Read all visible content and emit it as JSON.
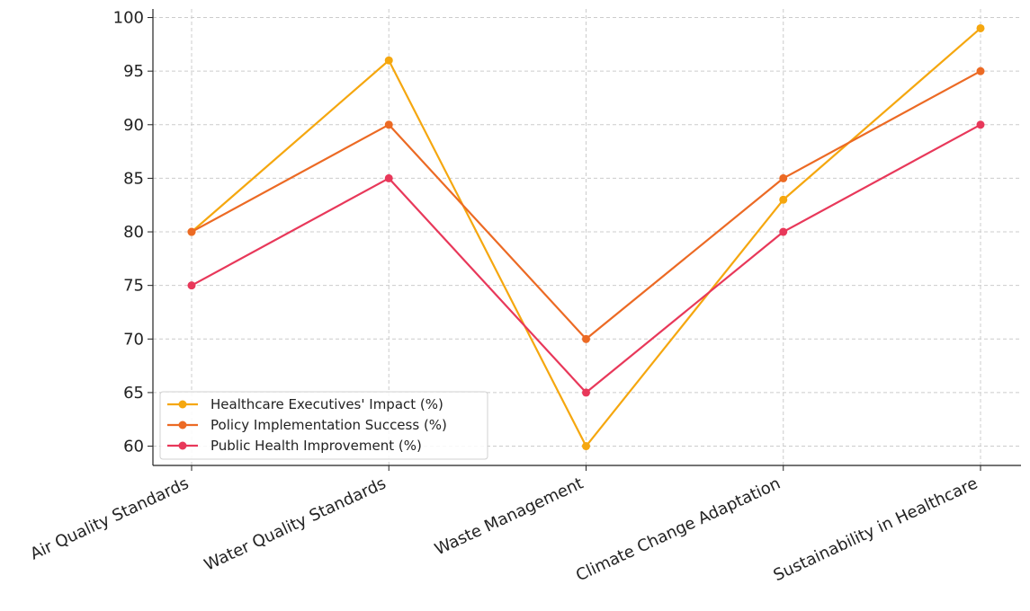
{
  "chart_data": {
    "type": "line",
    "categories": [
      "Air Quality Standards",
      "Water Quality Standards",
      "Waste Management",
      "Climate Change Adaptation",
      "Sustainability in Healthcare"
    ],
    "series": [
      {
        "name": "Healthcare Executives' Impact (%)",
        "values": [
          80,
          96,
          60,
          83,
          99
        ],
        "color": "#f5a70f"
      },
      {
        "name": "Policy Implementation Success (%)",
        "values": [
          80,
          90,
          70,
          85,
          95
        ],
        "color": "#ec6a24"
      },
      {
        "name": "Public Health Improvement (%)",
        "values": [
          75,
          85,
          65,
          80,
          90
        ],
        "color": "#e8385a"
      }
    ],
    "ylim": [
      58.2,
      100.8
    ],
    "yticks": [
      60,
      65,
      70,
      75,
      80,
      85,
      90,
      95,
      100
    ],
    "grid": true,
    "legend_position": "lower-left",
    "marker": "circle"
  }
}
